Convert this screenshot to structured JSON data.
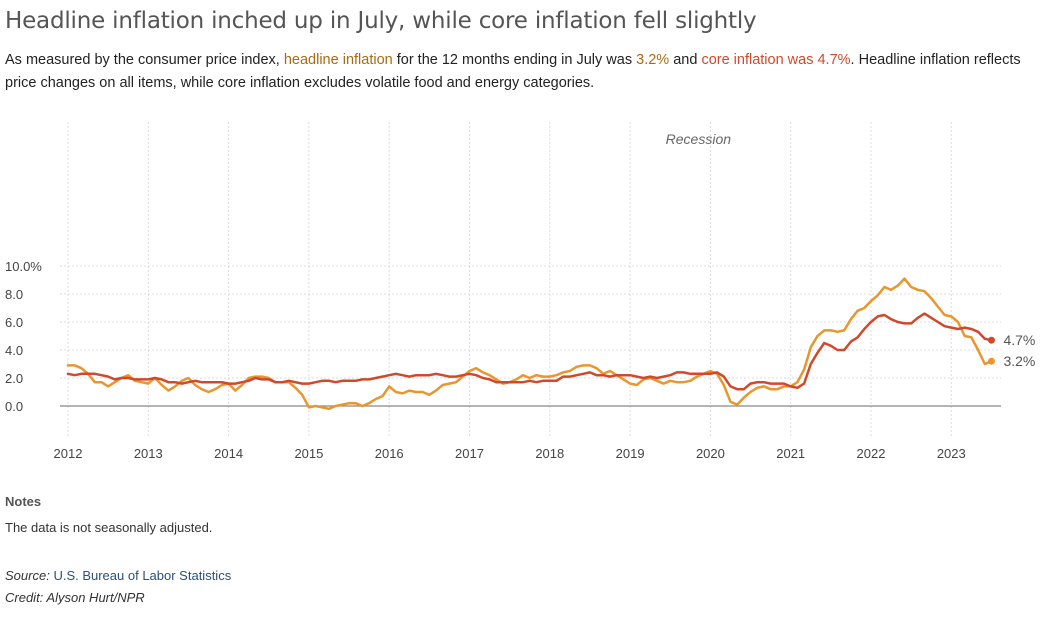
{
  "header": {
    "title": "Headline inflation inched up in July, while core inflation fell slightly",
    "subtitle_parts": {
      "p1": "As measured by the consumer price index, ",
      "headline_term": "headline inflation",
      "p2": " for the 12 months ending in July was ",
      "headline_value": "3.2%",
      "p3": " and ",
      "core_phrase": "core inflation was 4.7%",
      "p4": ". Headline inflation reflects price changes on all items, while core inflation excludes volatile food and energy categories."
    }
  },
  "notes": {
    "heading": "Notes",
    "text": "The data is not seasonally adjusted."
  },
  "footer": {
    "source_label": "Source:",
    "source_name": "U.S. Bureau of Labor Statistics",
    "credit": "Credit: Alyson Hurt/NPR"
  },
  "colors": {
    "headline": "#e8962e",
    "core": "#d0492c",
    "headline_text": "#a86b10",
    "grid": "#dddddd",
    "zero_line": "#888888"
  },
  "chart_data": {
    "type": "line",
    "x_start": "2012-01",
    "x_ticks": [
      "2012",
      "2013",
      "2014",
      "2015",
      "2016",
      "2017",
      "2018",
      "2019",
      "2020",
      "2021",
      "2022",
      "2023"
    ],
    "y_ticks": [
      "0.0",
      "2.0",
      "4.0",
      "6.0",
      "8.0",
      "10.0%"
    ],
    "ylim": [
      -1.0,
      10.0
    ],
    "grid": true,
    "annotation": "Recession",
    "series": [
      {
        "key": "headline",
        "end_label": "3.2%",
        "values": [
          2.9,
          2.9,
          2.7,
          2.3,
          1.7,
          1.7,
          1.4,
          1.7,
          2.0,
          2.2,
          1.8,
          1.7,
          1.6,
          2.0,
          1.5,
          1.1,
          1.4,
          1.8,
          2.0,
          1.5,
          1.2,
          1.0,
          1.2,
          1.5,
          1.6,
          1.1,
          1.5,
          2.0,
          2.1,
          2.1,
          2.0,
          1.7,
          1.7,
          1.7,
          1.3,
          0.8,
          -0.1,
          0.0,
          -0.1,
          -0.2,
          0.0,
          0.1,
          0.2,
          0.2,
          0.0,
          0.2,
          0.5,
          0.7,
          1.4,
          1.0,
          0.9,
          1.1,
          1.0,
          1.0,
          0.8,
          1.1,
          1.5,
          1.6,
          1.7,
          2.1,
          2.5,
          2.7,
          2.4,
          2.2,
          1.9,
          1.6,
          1.7,
          1.9,
          2.2,
          2.0,
          2.2,
          2.1,
          2.1,
          2.2,
          2.4,
          2.5,
          2.8,
          2.9,
          2.9,
          2.7,
          2.3,
          2.5,
          2.2,
          1.9,
          1.6,
          1.5,
          1.9,
          2.0,
          1.8,
          1.6,
          1.8,
          1.7,
          1.7,
          1.8,
          2.1,
          2.3,
          2.5,
          2.3,
          1.5,
          0.3,
          0.1,
          0.6,
          1.0,
          1.3,
          1.4,
          1.2,
          1.2,
          1.4,
          1.4,
          1.7,
          2.6,
          4.2,
          5.0,
          5.4,
          5.4,
          5.3,
          5.4,
          6.2,
          6.8,
          7.0,
          7.5,
          7.9,
          8.5,
          8.3,
          8.6,
          9.1,
          8.5,
          8.3,
          8.2,
          7.7,
          7.1,
          6.5,
          6.4,
          6.0,
          5.0,
          4.9,
          4.0,
          3.0,
          3.2
        ]
      },
      {
        "key": "core",
        "end_label": "4.7%",
        "values": [
          2.3,
          2.2,
          2.3,
          2.3,
          2.3,
          2.2,
          2.1,
          1.9,
          2.0,
          2.0,
          1.9,
          1.9,
          1.9,
          2.0,
          1.9,
          1.7,
          1.7,
          1.6,
          1.7,
          1.8,
          1.7,
          1.7,
          1.7,
          1.7,
          1.6,
          1.6,
          1.7,
          1.8,
          2.0,
          1.9,
          1.9,
          1.7,
          1.7,
          1.8,
          1.7,
          1.6,
          1.6,
          1.7,
          1.8,
          1.8,
          1.7,
          1.8,
          1.8,
          1.8,
          1.9,
          1.9,
          2.0,
          2.1,
          2.2,
          2.3,
          2.2,
          2.1,
          2.2,
          2.2,
          2.2,
          2.3,
          2.2,
          2.1,
          2.1,
          2.2,
          2.3,
          2.2,
          2.0,
          1.9,
          1.7,
          1.7,
          1.7,
          1.7,
          1.7,
          1.8,
          1.7,
          1.8,
          1.8,
          1.8,
          2.1,
          2.1,
          2.2,
          2.3,
          2.4,
          2.2,
          2.2,
          2.1,
          2.2,
          2.2,
          2.2,
          2.1,
          2.0,
          2.1,
          2.0,
          2.1,
          2.2,
          2.4,
          2.4,
          2.3,
          2.3,
          2.3,
          2.3,
          2.4,
          2.1,
          1.4,
          1.2,
          1.2,
          1.6,
          1.7,
          1.7,
          1.6,
          1.6,
          1.6,
          1.4,
          1.3,
          1.6,
          3.0,
          3.8,
          4.5,
          4.3,
          4.0,
          4.0,
          4.6,
          4.9,
          5.5,
          6.0,
          6.4,
          6.5,
          6.2,
          6.0,
          5.9,
          5.9,
          6.3,
          6.6,
          6.3,
          6.0,
          5.7,
          5.6,
          5.5,
          5.6,
          5.5,
          5.3,
          4.8,
          4.7
        ]
      }
    ]
  }
}
